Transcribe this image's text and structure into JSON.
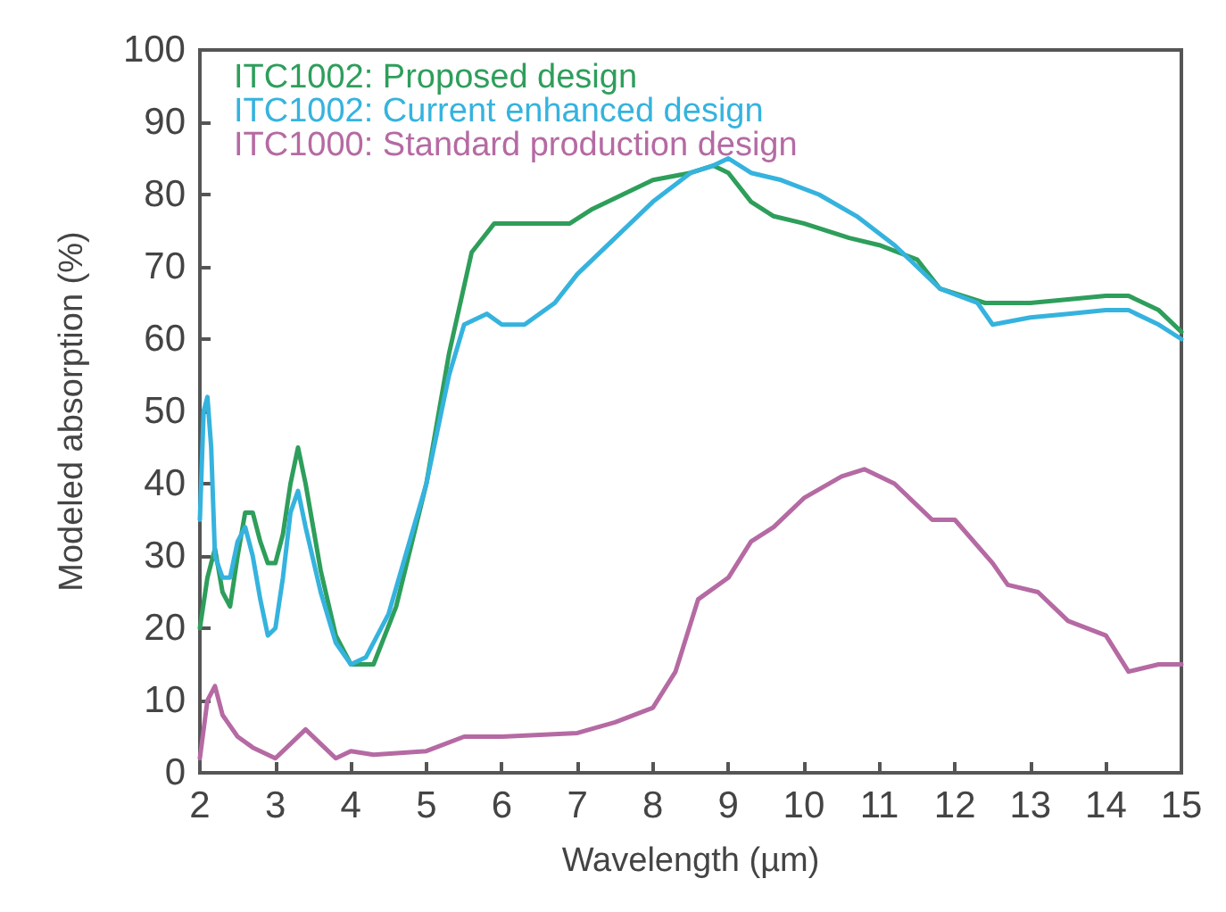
{
  "chart_data": {
    "type": "line",
    "xlabel": "Wavelength (µm)",
    "ylabel": "Modeled absorption (%)",
    "xlim": [
      2,
      15
    ],
    "xticks": [
      2,
      3,
      4,
      5,
      6,
      7,
      8,
      9,
      10,
      11,
      12,
      13,
      14,
      15
    ],
    "ylim": [
      0,
      100
    ],
    "yticks": [
      0,
      10,
      20,
      30,
      40,
      50,
      60,
      70,
      80,
      90,
      100
    ],
    "grid": false,
    "legend": "top left",
    "marker": "none",
    "line_style": "solid",
    "series": [
      {
        "name": "ITC1002: Proposed design",
        "color": "#2e9e5b",
        "x": [
          2.0,
          2.1,
          2.2,
          2.3,
          2.4,
          2.5,
          2.6,
          2.7,
          2.8,
          2.9,
          3.0,
          3.1,
          3.2,
          3.3,
          3.4,
          3.6,
          3.8,
          4.0,
          4.3,
          4.6,
          5.0,
          5.3,
          5.6,
          5.9,
          6.5,
          6.9,
          7.2,
          7.6,
          8.0,
          8.5,
          8.8,
          9.0,
          9.3,
          9.6,
          10.0,
          10.6,
          11.0,
          11.5,
          11.8,
          12.4,
          12.7,
          13.0,
          13.5,
          14.0,
          14.3,
          14.7,
          15.0
        ],
        "values": [
          20,
          27,
          31,
          25,
          23,
          30,
          36,
          36,
          32,
          29,
          29,
          33,
          40,
          45,
          40,
          28,
          19,
          15,
          15,
          23,
          40,
          58,
          72,
          76,
          76,
          76,
          78,
          80,
          82,
          83,
          84,
          83,
          79,
          77,
          76,
          74,
          73,
          71,
          67,
          65,
          65,
          65,
          65.5,
          66,
          66,
          64,
          61
        ]
      },
      {
        "name": "ITC1002: Current enhanced design",
        "color": "#35b3de",
        "x": [
          2.0,
          2.05,
          2.1,
          2.15,
          2.2,
          2.3,
          2.4,
          2.5,
          2.6,
          2.7,
          2.8,
          2.9,
          3.0,
          3.1,
          3.2,
          3.3,
          3.4,
          3.6,
          3.8,
          4.0,
          4.2,
          4.5,
          5.0,
          5.3,
          5.5,
          5.8,
          6.0,
          6.3,
          6.7,
          7.0,
          7.5,
          8.0,
          8.5,
          8.8,
          9.0,
          9.3,
          9.7,
          10.2,
          10.7,
          11.2,
          11.8,
          12.3,
          12.5,
          13.0,
          13.5,
          14.0,
          14.3,
          14.7,
          15.0
        ],
        "values": [
          35,
          50,
          52,
          45,
          30,
          27,
          27,
          32,
          34,
          30,
          24,
          19,
          20,
          27,
          36,
          39,
          34,
          25,
          18,
          15,
          16,
          22,
          40,
          55,
          62,
          63.5,
          62,
          62,
          65,
          69,
          74,
          79,
          83,
          84,
          85,
          83,
          82,
          80,
          77,
          73,
          67,
          65,
          62,
          63,
          63.5,
          64,
          64,
          62,
          60
        ]
      },
      {
        "name": "ITC1000: Standard production design",
        "color": "#b56aa3",
        "x": [
          2.0,
          2.1,
          2.2,
          2.3,
          2.5,
          2.7,
          3.0,
          3.2,
          3.4,
          3.6,
          3.8,
          4.0,
          4.3,
          5.0,
          5.5,
          6.0,
          7.0,
          7.5,
          8.0,
          8.3,
          8.6,
          9.0,
          9.3,
          9.6,
          10.0,
          10.5,
          10.8,
          11.2,
          11.7,
          12.0,
          12.5,
          12.7,
          13.1,
          13.5,
          14.0,
          14.3,
          14.7,
          15.0
        ],
        "values": [
          2,
          10,
          12,
          8,
          5,
          3.5,
          2,
          4,
          6,
          4,
          2,
          3,
          2.5,
          3,
          5,
          5,
          5.5,
          7,
          9,
          14,
          24,
          27,
          32,
          34,
          38,
          41,
          42,
          40,
          35,
          35,
          29,
          26,
          25,
          21,
          19,
          14,
          15,
          15
        ]
      }
    ]
  }
}
